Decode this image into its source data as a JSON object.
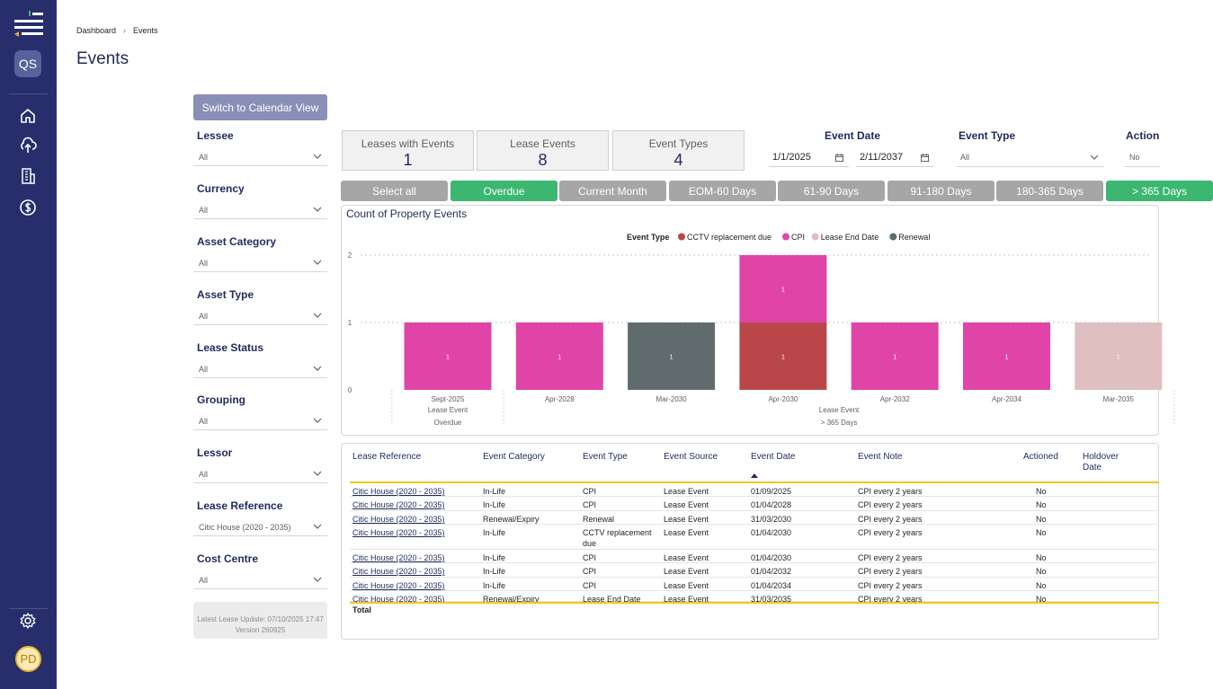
{
  "app": {
    "avatar_initials": "QS",
    "user_initials": "PD"
  },
  "breadcrumb": {
    "root": "Dashboard",
    "current": "Events"
  },
  "page": {
    "title": "Events"
  },
  "switch_view": {
    "label": "Switch to Calendar View"
  },
  "filters": [
    {
      "label": "Lessee",
      "value": "All"
    },
    {
      "label": "Currency",
      "value": "All"
    },
    {
      "label": "Asset Category",
      "value": "All"
    },
    {
      "label": "Asset Type",
      "value": "All"
    },
    {
      "label": "Lease Status",
      "value": "All"
    },
    {
      "label": "Grouping",
      "value": "All"
    },
    {
      "label": "Lessor",
      "value": "All"
    },
    {
      "label": "Lease Reference",
      "value": "Citic House (2020 - 2035)"
    },
    {
      "label": "Cost Centre",
      "value": "All"
    }
  ],
  "update_info": {
    "line1": "Latest Lease Update: 07/10/2025 17:47",
    "line2": "Version 260925"
  },
  "kpis": [
    {
      "label": "Leases with Events",
      "value": "1"
    },
    {
      "label": "Lease Events",
      "value": "8"
    },
    {
      "label": "Event Types",
      "value": "4"
    }
  ],
  "event_date": {
    "label": "Event Date",
    "from": "1/1/2025",
    "to": "2/11/2037"
  },
  "event_type_filter": {
    "label": "Event Type",
    "value": "All"
  },
  "actioned_filter": {
    "label": "Action",
    "value": "No"
  },
  "period_buttons": [
    {
      "label": "Select all",
      "active": false
    },
    {
      "label": "Overdue",
      "active": true
    },
    {
      "label": "Current Month",
      "active": false
    },
    {
      "label": "EOM-60 Days",
      "active": false
    },
    {
      "label": "61-90 Days",
      "active": false
    },
    {
      "label": "91-180 Days",
      "active": false
    },
    {
      "label": "180-365 Days",
      "active": false
    },
    {
      "label": "> 365 Days",
      "active": true
    }
  ],
  "chart_data": {
    "type": "bar",
    "stacked": true,
    "title": "Count of Property Events",
    "legend_title": "Event Type",
    "legend_position": "top",
    "categories": [
      "Sept-2025",
      "Apr-2028",
      "Mar-2030",
      "Apr-2030",
      "Apr-2032",
      "Apr-2034",
      "Mar-2035"
    ],
    "group_labels": [
      {
        "line1": "Lease Event",
        "line2": "Overdue",
        "from": 0,
        "to": 0
      },
      {
        "line1": "Lease Event",
        "line2": "> 365 Days",
        "from": 1,
        "to": 6
      }
    ],
    "series": [
      {
        "name": "CCTV replacement due",
        "color": "#b94749",
        "values": [
          0,
          0,
          0,
          1,
          0,
          0,
          0
        ]
      },
      {
        "name": "CPI",
        "color": "#e044a7",
        "values": [
          1,
          1,
          0,
          1,
          1,
          1,
          0
        ]
      },
      {
        "name": "Lease End Date",
        "color": "#dfbfbf",
        "values": [
          0,
          0,
          0,
          0,
          0,
          0,
          1
        ]
      },
      {
        "name": "Renewal",
        "color": "#5f6b6d",
        "values": [
          0,
          0,
          1,
          0,
          0,
          0,
          0
        ]
      }
    ],
    "y_ticks": [
      "0",
      "1",
      "2"
    ],
    "ylim": [
      0,
      2
    ],
    "grid": true
  },
  "table": {
    "columns": [
      "Lease Reference",
      "Event Category",
      "Event Type",
      "Event Source",
      "Event Date",
      "Event Note",
      "Actioned",
      "Holdover Date"
    ],
    "rows": [
      [
        "Citic House (2020 - 2035)",
        "In-Life",
        "CPI",
        "Lease Event",
        "01/09/2025",
        "CPI every 2 years",
        "No"
      ],
      [
        "Citic House (2020 - 2035)",
        "In-Life",
        "CPI",
        "Lease Event",
        "01/04/2028",
        "CPI every 2 years",
        "No"
      ],
      [
        "Citic House (2020 - 2035)",
        "Renewal/Expiry",
        "Renewal",
        "Lease Event",
        "31/03/2030",
        "CPI every 2 years",
        "No"
      ],
      [
        "Citic House (2020 - 2035)",
        "In-Life",
        "CCTV replacement due",
        "Lease Event",
        "01/04/2030",
        "CPI every 2 years",
        "No"
      ],
      [
        "Citic House (2020 - 2035)",
        "In-Life",
        "CPI",
        "Lease Event",
        "01/04/2030",
        "CPI every 2 years",
        "No"
      ],
      [
        "Citic House (2020 - 2035)",
        "In-Life",
        "CPI",
        "Lease Event",
        "01/04/2032",
        "CPI every 2 years",
        "No"
      ],
      [
        "Citic House (2020 - 2035)",
        "In-Life",
        "CPI",
        "Lease Event",
        "01/04/2034",
        "CPI every 2 years",
        "No"
      ],
      [
        "Citic House (2020 - 2035)",
        "Renewal/Expiry",
        "Lease End Date",
        "Lease Event",
        "31/03/2035",
        "CPI every 2 years",
        "No"
      ]
    ],
    "total_label": "Total"
  }
}
